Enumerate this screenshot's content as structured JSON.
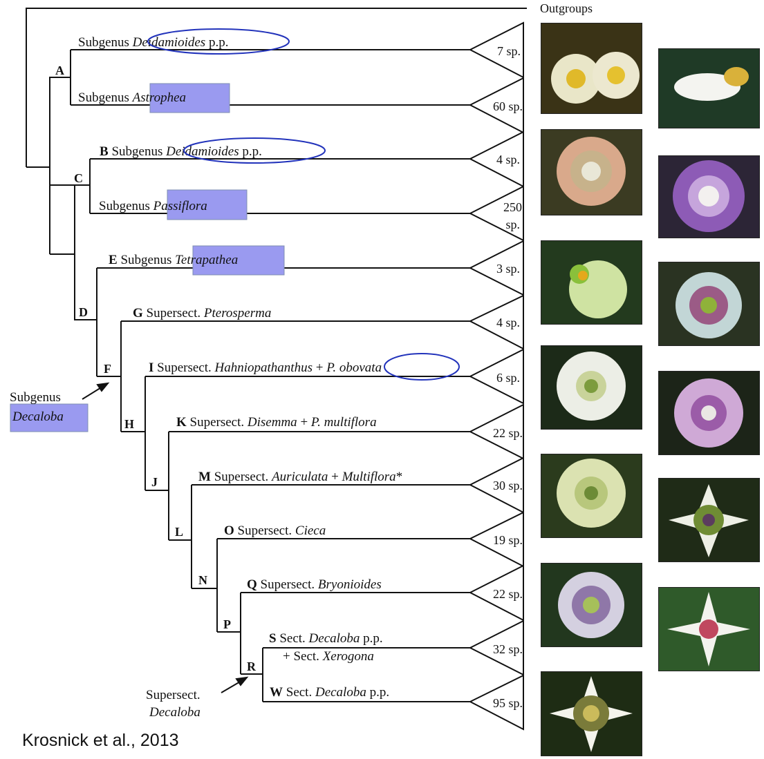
{
  "outgroups": "Outgroups",
  "nodes": {
    "A": "A",
    "B": "B",
    "C": "C",
    "D": "D",
    "E": "E",
    "F": "F",
    "G": "G",
    "H": "H",
    "I": "I",
    "J": "J",
    "K": "K",
    "L": "L",
    "M": "M",
    "N": "N",
    "O": "O",
    "P": "P",
    "Q": "Q",
    "R": "R",
    "S": "S",
    "W": "W"
  },
  "clades": [
    {
      "prefix": "Subgenus",
      "name": "Deidamioides",
      "suffix": "p.p.",
      "count": "7 sp.",
      "highlight": "ellipse"
    },
    {
      "prefix": "Subgenus",
      "name": "Astrophea",
      "suffix": "",
      "count": "60 sp.",
      "highlight": "box"
    },
    {
      "prefix": "Subgenus",
      "name": "Deidamioides",
      "suffix": "p.p.",
      "count": "4 sp.",
      "highlight": "ellipse"
    },
    {
      "prefix": "Subgenus",
      "name": "Passiflora",
      "suffix": "",
      "count_line1": "250",
      "count_line2": "sp.",
      "highlight": "box"
    },
    {
      "prefix": "Subgenus",
      "name": "Tetrapathea",
      "suffix": "",
      "count": "3 sp.",
      "highlight": "box"
    },
    {
      "prefix": "Supersect.",
      "name": "Pterosperma",
      "suffix": "",
      "count": "4 sp."
    },
    {
      "prefix": "Supersect.",
      "name": "Hahniopathanthus",
      "plus": "+",
      "name2": "P. obovata",
      "count": "6 sp.",
      "highlight": "ellipse"
    },
    {
      "prefix": "Supersect.",
      "name": "Disemma",
      "plus": "+",
      "name2": "P. multiflora",
      "count": "22 sp."
    },
    {
      "prefix": "Supersect.",
      "name": "Auriculata",
      "plus": "+",
      "name2": "Multiflora",
      "star": "*",
      "count": "30 sp."
    },
    {
      "prefix": "Supersect.",
      "name": "Cieca",
      "count": "19 sp."
    },
    {
      "prefix": "Supersect.",
      "name": "Bryonioides",
      "count": "22 sp."
    },
    {
      "prefix": "Sect.",
      "name": "Decaloba",
      "suffix": "p.p.",
      "line2_prefix": "+ Sect.",
      "line2_name": "Xerogona",
      "count": "32 sp."
    },
    {
      "prefix": "Sect.",
      "name": "Decaloba",
      "suffix": "p.p.",
      "count": "95 sp."
    }
  ],
  "callouts": {
    "subgenus_line1": "Subgenus",
    "subgenus_line2": "Decaloba",
    "supersect_line1": "Supersect.",
    "supersect_line2": "Decaloba"
  },
  "credit": "Krosnick et al., 2013",
  "colors": {
    "highlight_fill": "#9a9af0",
    "ellipse_stroke": "#2233bb",
    "line": "#111111"
  }
}
